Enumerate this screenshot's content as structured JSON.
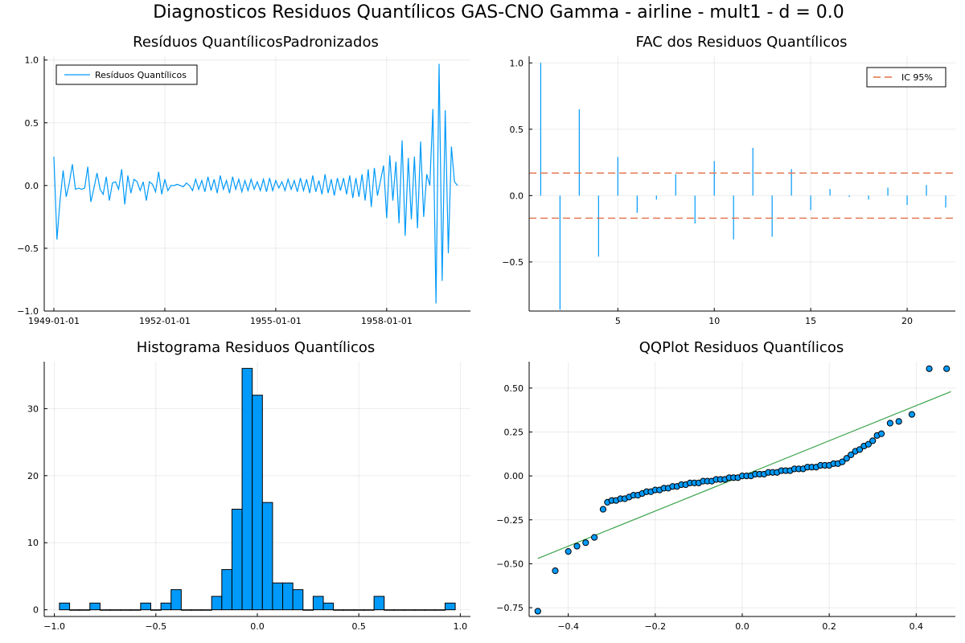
{
  "figure": {
    "title": "Diagnosticos Residuos  Quantílicos GAS-CNO Gamma - airline - mult1 - d = 0.0"
  },
  "chart_data": [
    {
      "type": "line",
      "title": "Resíduos  QuantílicosPadronizados",
      "xlabel": "",
      "ylabel": "",
      "legend_position": "top-left",
      "grid": true,
      "x_ticks": [
        "1949-01-01",
        "1952-01-01",
        "1955-01-01",
        "1958-01-01"
      ],
      "y_ticks": [
        -1.0,
        -0.5,
        0.0,
        0.5,
        1.0
      ],
      "y_tick_labels": [
        "−1.0",
        "−0.5",
        "0.0",
        "0.5",
        "1.0"
      ],
      "ylim": [
        -1.0,
        1.03
      ],
      "color": "#009AFA",
      "series": [
        {
          "name": "Resíduos Quantílicos",
          "start": "1949-01",
          "step": "monthly",
          "values": [
            0.23,
            -0.43,
            -0.12,
            0.12,
            -0.09,
            0.02,
            0.17,
            -0.03,
            -0.02,
            -0.03,
            -0.02,
            0.15,
            -0.13,
            -0.02,
            0.1,
            -0.03,
            -0.07,
            0.07,
            -0.12,
            0.02,
            0.03,
            -0.03,
            0.13,
            -0.15,
            0.08,
            -0.06,
            0.05,
            0.03,
            -0.04,
            0.03,
            -0.12,
            0.03,
            0.01,
            -0.05,
            0.11,
            -0.07,
            0.05,
            -0.04,
            0.0,
            0.0,
            0.01,
            0.0,
            -0.01,
            0.02,
            0.0,
            -0.04,
            0.05,
            -0.03,
            0.04,
            -0.05,
            0.07,
            -0.04,
            0.05,
            -0.06,
            0.08,
            -0.03,
            0.04,
            -0.06,
            0.07,
            -0.03,
            0.05,
            -0.05,
            0.04,
            -0.04,
            0.05,
            -0.03,
            0.03,
            -0.04,
            0.05,
            -0.05,
            0.06,
            -0.04,
            0.04,
            -0.02,
            0.03,
            -0.04,
            0.05,
            -0.03,
            0.04,
            -0.05,
            0.06,
            -0.04,
            0.05,
            -0.06,
            0.08,
            -0.05,
            0.04,
            -0.07,
            0.09,
            -0.06,
            0.05,
            -0.08,
            0.06,
            -0.04,
            0.06,
            -0.07,
            0.08,
            -0.1,
            0.06,
            -0.09,
            0.09,
            -0.12,
            0.13,
            -0.17,
            0.14,
            -0.08,
            0.04,
            0.16,
            -0.26,
            0.24,
            -0.12,
            0.19,
            -0.3,
            0.36,
            -0.4,
            0.22,
            -0.27,
            0.23,
            -0.34,
            0.35,
            -0.25,
            0.09,
            0.0,
            0.61,
            -0.94,
            0.97,
            -0.76,
            0.6,
            -0.54,
            0.31,
            0.03,
            0.0
          ]
        }
      ]
    },
    {
      "type": "bar",
      "title": "FAC dos Residuos Quantílicos",
      "xlabel": "",
      "ylabel": "",
      "legend_position": "top-right",
      "grid": true,
      "x_ticks": [
        5,
        10,
        15,
        20
      ],
      "y_ticks": [
        -0.5,
        0.0,
        0.5,
        1.0
      ],
      "y_tick_labels": [
        "−0.5",
        "0.0",
        "0.5",
        "1.0"
      ],
      "xlim": [
        0.4,
        22.5
      ],
      "ylim": [
        -0.87,
        1.05
      ],
      "color": "#009AFA",
      "lags": [
        1,
        2,
        3,
        4,
        5,
        6,
        7,
        8,
        9,
        10,
        11,
        12,
        13,
        14,
        15,
        16,
        17,
        18,
        19,
        20,
        21,
        22
      ],
      "acf": [
        1.0,
        -0.86,
        0.65,
        -0.46,
        0.29,
        -0.13,
        -0.03,
        0.16,
        -0.21,
        0.26,
        -0.33,
        0.36,
        -0.31,
        0.2,
        -0.11,
        0.05,
        -0.01,
        -0.03,
        0.06,
        -0.07,
        0.08,
        -0.09
      ],
      "confidence_interval": {
        "name": "IC 95%",
        "value": 0.17,
        "color": "#E26F46"
      }
    },
    {
      "type": "bar",
      "title": "Histograma Residuos Quantílicos",
      "xlabel": "",
      "ylabel": "",
      "grid": true,
      "x_ticks": [
        -1.0,
        -0.5,
        0.0,
        0.5,
        1.0
      ],
      "x_tick_labels": [
        "−1.0",
        "−0.5",
        "0.0",
        "0.5",
        "1.0"
      ],
      "y_ticks": [
        0,
        10,
        20,
        30
      ],
      "xlim": [
        -1.05,
        1.05
      ],
      "ylim": [
        -1,
        37
      ],
      "color": "#009AFA",
      "bin_width": 0.05,
      "bins": [
        -0.95,
        -0.9,
        -0.85,
        -0.8,
        -0.75,
        -0.7,
        -0.65,
        -0.6,
        -0.55,
        -0.5,
        -0.45,
        -0.4,
        -0.35,
        -0.3,
        -0.25,
        -0.2,
        -0.15,
        -0.1,
        -0.05,
        0.0,
        0.05,
        0.1,
        0.15,
        0.2,
        0.25,
        0.3,
        0.35,
        0.4,
        0.45,
        0.5,
        0.55,
        0.6,
        0.65,
        0.7,
        0.75,
        0.8,
        0.85,
        0.9,
        0.95
      ],
      "counts": [
        1,
        0,
        0,
        1,
        0,
        0,
        0,
        0,
        1,
        0,
        1,
        3,
        0,
        0,
        0,
        2,
        6,
        15,
        36,
        32,
        16,
        4,
        4,
        3,
        0,
        2,
        1,
        0,
        0,
        0,
        0,
        2,
        0,
        0,
        0,
        0,
        0,
        0,
        1
      ]
    },
    {
      "type": "scatter",
      "title": "QQPlot Residuos Quantílicos",
      "xlabel": "",
      "ylabel": "",
      "grid": true,
      "x_ticks": [
        -0.4,
        -0.2,
        0.0,
        0.2,
        0.4
      ],
      "x_tick_labels": [
        "−0.4",
        "−0.2",
        "0.0",
        "0.2",
        "0.4"
      ],
      "y_ticks": [
        -0.75,
        -0.5,
        -0.25,
        0.0,
        0.25,
        0.5
      ],
      "y_tick_labels": [
        "−0.75",
        "−0.50",
        "−0.25",
        "0.00",
        "0.25",
        "0.50"
      ],
      "xlim": [
        -0.49,
        0.49
      ],
      "ylim": [
        -0.8,
        0.65
      ],
      "color": "#009AFA",
      "line_color": "#3DA44D",
      "reference_line": {
        "x": [
          -0.47,
          0.48
        ],
        "y": [
          -0.47,
          0.48
        ]
      },
      "points": [
        [
          -0.47,
          -0.77
        ],
        [
          -0.43,
          -0.54
        ],
        [
          -0.4,
          -0.43
        ],
        [
          -0.38,
          -0.4
        ],
        [
          -0.36,
          -0.38
        ],
        [
          -0.34,
          -0.35
        ],
        [
          -0.32,
          -0.19
        ],
        [
          -0.31,
          -0.15
        ],
        [
          -0.3,
          -0.14
        ],
        [
          -0.29,
          -0.14
        ],
        [
          -0.28,
          -0.13
        ],
        [
          -0.27,
          -0.13
        ],
        [
          -0.26,
          -0.12
        ],
        [
          -0.25,
          -0.11
        ],
        [
          -0.24,
          -0.11
        ],
        [
          -0.23,
          -0.1
        ],
        [
          -0.22,
          -0.09
        ],
        [
          -0.21,
          -0.09
        ],
        [
          -0.2,
          -0.08
        ],
        [
          -0.19,
          -0.08
        ],
        [
          -0.18,
          -0.07
        ],
        [
          -0.17,
          -0.07
        ],
        [
          -0.16,
          -0.06
        ],
        [
          -0.15,
          -0.06
        ],
        [
          -0.14,
          -0.05
        ],
        [
          -0.13,
          -0.05
        ],
        [
          -0.12,
          -0.04
        ],
        [
          -0.11,
          -0.04
        ],
        [
          -0.1,
          -0.04
        ],
        [
          -0.09,
          -0.03
        ],
        [
          -0.08,
          -0.03
        ],
        [
          -0.07,
          -0.03
        ],
        [
          -0.06,
          -0.02
        ],
        [
          -0.05,
          -0.02
        ],
        [
          -0.04,
          -0.02
        ],
        [
          -0.03,
          -0.01
        ],
        [
          -0.02,
          -0.01
        ],
        [
          -0.01,
          -0.01
        ],
        [
          0.0,
          0.0
        ],
        [
          0.01,
          0.0
        ],
        [
          0.02,
          0.0
        ],
        [
          0.03,
          0.01
        ],
        [
          0.04,
          0.01
        ],
        [
          0.05,
          0.01
        ],
        [
          0.06,
          0.02
        ],
        [
          0.07,
          0.02
        ],
        [
          0.08,
          0.02
        ],
        [
          0.09,
          0.03
        ],
        [
          0.1,
          0.03
        ],
        [
          0.11,
          0.03
        ],
        [
          0.12,
          0.04
        ],
        [
          0.13,
          0.04
        ],
        [
          0.14,
          0.04
        ],
        [
          0.15,
          0.05
        ],
        [
          0.16,
          0.05
        ],
        [
          0.17,
          0.05
        ],
        [
          0.18,
          0.06
        ],
        [
          0.19,
          0.06
        ],
        [
          0.2,
          0.06
        ],
        [
          0.21,
          0.07
        ],
        [
          0.22,
          0.07
        ],
        [
          0.23,
          0.08
        ],
        [
          0.24,
          0.1
        ],
        [
          0.25,
          0.12
        ],
        [
          0.26,
          0.14
        ],
        [
          0.27,
          0.15
        ],
        [
          0.28,
          0.17
        ],
        [
          0.29,
          0.18
        ],
        [
          0.3,
          0.2
        ],
        [
          0.31,
          0.23
        ],
        [
          0.32,
          0.24
        ],
        [
          0.34,
          0.3
        ],
        [
          0.36,
          0.31
        ],
        [
          0.39,
          0.35
        ],
        [
          0.43,
          0.61
        ],
        [
          0.47,
          0.61
        ]
      ]
    }
  ]
}
